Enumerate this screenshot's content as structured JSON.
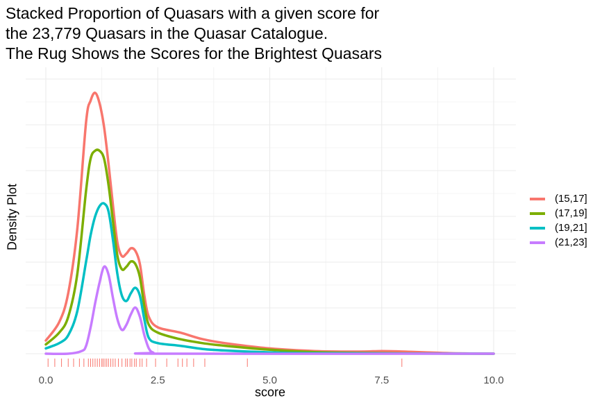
{
  "chart_data": {
    "type": "line",
    "title_lines": [
      "Stacked Proportion of Quasars with a given score for",
      "the 23,779 Quasars in the Quasar Catalogue.",
      "The Rug Shows the Scores for the Brightest Quasars"
    ],
    "xlabel": "score",
    "ylabel": "Density Plot",
    "xlim": [
      0,
      10
    ],
    "ylim": [
      0,
      1.0
    ],
    "x_ticks": [
      "0.0",
      "2.5",
      "5.0",
      "7.5",
      "10.0"
    ],
    "grid": true,
    "legend_position": "right",
    "series": [
      {
        "name": "(15,17]",
        "color": "#F8766D",
        "points": [
          [
            0,
            0.05
          ],
          [
            0.3,
            0.12
          ],
          [
            0.5,
            0.23
          ],
          [
            0.7,
            0.47
          ],
          [
            0.9,
            0.88
          ],
          [
            1.0,
            0.96
          ],
          [
            1.1,
            0.99
          ],
          [
            1.2,
            0.95
          ],
          [
            1.3,
            0.86
          ],
          [
            1.4,
            0.72
          ],
          [
            1.5,
            0.56
          ],
          [
            1.6,
            0.42
          ],
          [
            1.7,
            0.37
          ],
          [
            1.8,
            0.38
          ],
          [
            1.9,
            0.4
          ],
          [
            2.0,
            0.39
          ],
          [
            2.1,
            0.34
          ],
          [
            2.2,
            0.22
          ],
          [
            2.3,
            0.14
          ],
          [
            2.5,
            0.1
          ],
          [
            3.0,
            0.08
          ],
          [
            3.5,
            0.055
          ],
          [
            4.0,
            0.04
          ],
          [
            5.0,
            0.02
          ],
          [
            6.0,
            0.01
          ],
          [
            7.0,
            0.008
          ],
          [
            7.5,
            0.01
          ],
          [
            8.0,
            0.008
          ],
          [
            9.0,
            0.002
          ],
          [
            10.0,
            0.0
          ]
        ]
      },
      {
        "name": "(17,19]",
        "color": "#7CAE00",
        "points": [
          [
            0,
            0.035
          ],
          [
            0.3,
            0.08
          ],
          [
            0.5,
            0.14
          ],
          [
            0.7,
            0.3
          ],
          [
            0.9,
            0.62
          ],
          [
            1.0,
            0.74
          ],
          [
            1.1,
            0.77
          ],
          [
            1.2,
            0.77
          ],
          [
            1.3,
            0.74
          ],
          [
            1.4,
            0.64
          ],
          [
            1.5,
            0.5
          ],
          [
            1.6,
            0.37
          ],
          [
            1.7,
            0.32
          ],
          [
            1.8,
            0.33
          ],
          [
            1.9,
            0.35
          ],
          [
            2.0,
            0.34
          ],
          [
            2.1,
            0.29
          ],
          [
            2.2,
            0.18
          ],
          [
            2.3,
            0.11
          ],
          [
            2.5,
            0.08
          ],
          [
            3.0,
            0.055
          ],
          [
            3.5,
            0.04
          ],
          [
            4.0,
            0.03
          ],
          [
            5.0,
            0.015
          ],
          [
            6.0,
            0.006
          ],
          [
            7.0,
            0.003
          ],
          [
            8.0,
            0.001
          ],
          [
            10.0,
            0.0
          ]
        ]
      },
      {
        "name": "(19,21]",
        "color": "#00BFC4",
        "points": [
          [
            0,
            0.02
          ],
          [
            0.3,
            0.04
          ],
          [
            0.5,
            0.07
          ],
          [
            0.7,
            0.16
          ],
          [
            0.9,
            0.35
          ],
          [
            1.0,
            0.45
          ],
          [
            1.1,
            0.52
          ],
          [
            1.2,
            0.56
          ],
          [
            1.3,
            0.57
          ],
          [
            1.4,
            0.54
          ],
          [
            1.5,
            0.43
          ],
          [
            1.6,
            0.3
          ],
          [
            1.7,
            0.22
          ],
          [
            1.8,
            0.2
          ],
          [
            1.9,
            0.23
          ],
          [
            2.0,
            0.25
          ],
          [
            2.1,
            0.22
          ],
          [
            2.2,
            0.13
          ],
          [
            2.3,
            0.06
          ],
          [
            2.5,
            0.04
          ],
          [
            3.0,
            0.03
          ],
          [
            3.5,
            0.018
          ],
          [
            4.0,
            0.012
          ],
          [
            5.0,
            0.005
          ],
          [
            6.0,
            0.002
          ],
          [
            10.0,
            0.0
          ]
        ]
      },
      {
        "name": "(21,23]",
        "color": "#C77CFF",
        "points": [
          [
            0,
            0.0
          ],
          [
            0.5,
            0.0
          ],
          [
            0.8,
            0.01
          ],
          [
            0.9,
            0.03
          ],
          [
            1.0,
            0.1
          ],
          [
            1.1,
            0.19
          ],
          [
            1.2,
            0.27
          ],
          [
            1.3,
            0.33
          ],
          [
            1.4,
            0.3
          ],
          [
            1.5,
            0.21
          ],
          [
            1.6,
            0.13
          ],
          [
            1.7,
            0.09
          ],
          [
            1.8,
            0.11
          ],
          [
            1.9,
            0.15
          ],
          [
            2.0,
            0.175
          ],
          [
            2.1,
            0.14
          ],
          [
            2.2,
            0.07
          ],
          [
            2.3,
            0.02
          ],
          [
            2.4,
            0.004
          ],
          [
            2.6,
            0.0
          ],
          [
            10.0,
            0.0
          ]
        ]
      }
    ],
    "rug": {
      "color": "#F8766D",
      "values": [
        0.05,
        0.2,
        0.35,
        0.5,
        0.62,
        0.75,
        0.85,
        0.95,
        1.0,
        1.05,
        1.1,
        1.15,
        1.2,
        1.25,
        1.28,
        1.32,
        1.36,
        1.4,
        1.45,
        1.5,
        1.55,
        1.62,
        1.7,
        1.78,
        1.82,
        1.88,
        1.92,
        1.98,
        2.02,
        2.1,
        2.15,
        2.25,
        2.45,
        2.7,
        2.95,
        3.05,
        3.15,
        3.3,
        3.55,
        4.5,
        7.95
      ]
    }
  }
}
